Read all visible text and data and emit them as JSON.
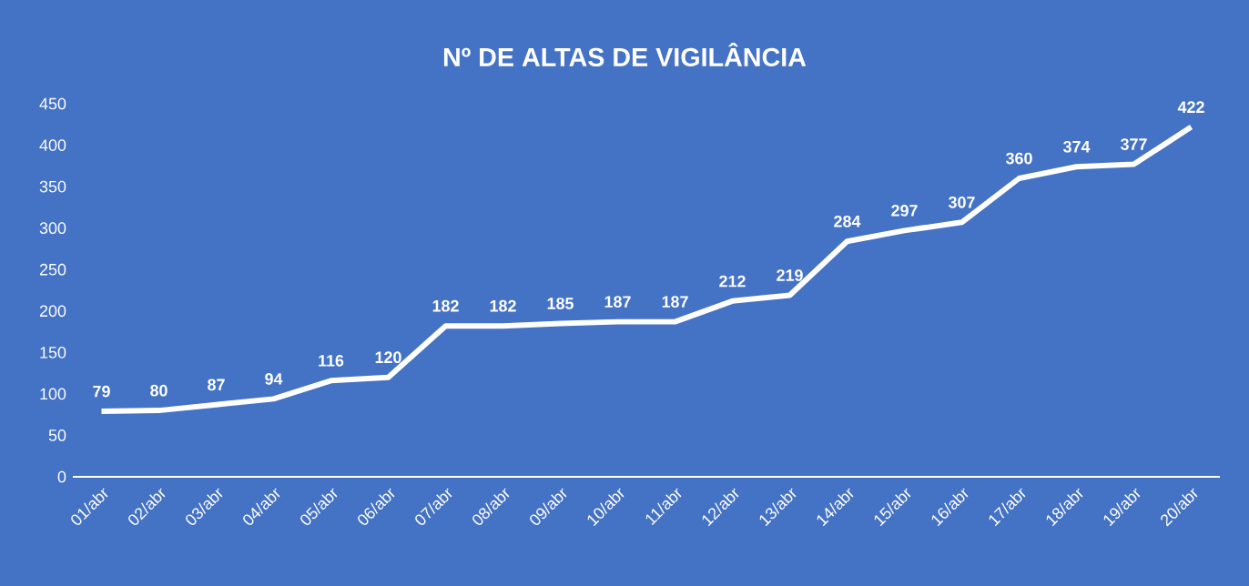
{
  "chart_data": {
    "type": "line",
    "title": "Nº DE ALTAS DE VIGILÂNCIA",
    "categories": [
      "01/abr",
      "02/abr",
      "03/abr",
      "04/abr",
      "05/abr",
      "06/abr",
      "07/abr",
      "08/abr",
      "09/abr",
      "10/abr",
      "11/abr",
      "12/abr",
      "13/abr",
      "14/abr",
      "15/abr",
      "16/abr",
      "17/abr",
      "18/abr",
      "19/abr",
      "20/abr"
    ],
    "values": [
      79,
      80,
      87,
      94,
      116,
      120,
      182,
      182,
      185,
      187,
      187,
      212,
      219,
      284,
      297,
      307,
      360,
      374,
      377,
      422
    ],
    "color": "#ffffff",
    "ylim": [
      0,
      450
    ],
    "yticks": [
      0,
      50,
      100,
      150,
      200,
      250,
      300,
      350,
      400,
      450
    ],
    "data_labels": true,
    "grid": false,
    "marker": "none",
    "line_style": "solid"
  }
}
